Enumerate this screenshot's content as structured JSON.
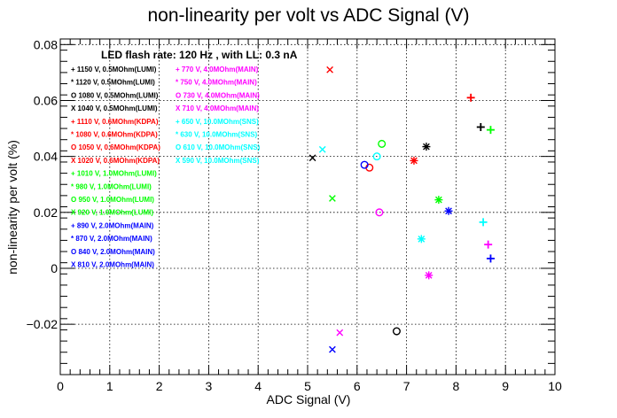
{
  "chart_data": {
    "type": "scatter",
    "title": "non-linearity per volt vs ADC Signal (V)",
    "xlabel": "ADC Signal (V)",
    "ylabel": "non-linearity per volt (%)",
    "xlim": [
      0,
      10
    ],
    "ylim": [
      -0.038,
      0.082
    ],
    "x_ticks": [
      0,
      1,
      2,
      3,
      4,
      5,
      6,
      7,
      8,
      9,
      10
    ],
    "y_ticks": [
      -0.02,
      0,
      0.02,
      0.04,
      0.06,
      0.08
    ],
    "x_tick_labels": [
      "0",
      "1",
      "2",
      "3",
      "4",
      "5",
      "6",
      "7",
      "8",
      "9",
      "10"
    ],
    "y_tick_labels": [
      "−0.02",
      "0",
      "0.02",
      "0.04",
      "0.06",
      "0.08"
    ],
    "grid": true,
    "legend_title": "LED flash rate: 120 Hz , with LL: 0.3 nA",
    "legend_position": "top-left",
    "series": [
      {
        "name": "+ 1150 V, 0.5MOhm(LUMI)",
        "marker": "+",
        "color": "#000000",
        "x": 8.5,
        "y": 0.0505
      },
      {
        "name": "* 1120 V, 0.5MOhm(LUMI)",
        "marker": "*",
        "color": "#000000",
        "x": 7.4,
        "y": 0.0435
      },
      {
        "name": "O 1080 V, 0.5MOhm(LUMI)",
        "marker": "o",
        "color": "#000000",
        "x": 6.8,
        "y": -0.0225
      },
      {
        "name": "X 1040 V, 0.5MOhm(LUMI)",
        "marker": "x",
        "color": "#000000",
        "x": 5.1,
        "y": 0.0395
      },
      {
        "name": "+ 1110 V, 0.6MOhm(KDPA)",
        "marker": "+",
        "color": "#ff0000",
        "x": 8.3,
        "y": 0.061
      },
      {
        "name": "* 1080 V, 0.6MOhm(KDPA)",
        "marker": "*",
        "color": "#ff0000",
        "x": 7.15,
        "y": 0.0385
      },
      {
        "name": "O 1050 V, 0.6MOhm(KDPA)",
        "marker": "o",
        "color": "#ff0000",
        "x": 6.25,
        "y": 0.036
      },
      {
        "name": "X 1020 V, 0.6MOhm(KDPA)",
        "marker": "x",
        "color": "#ff0000",
        "x": 5.45,
        "y": 0.071
      },
      {
        "name": "+ 1010 V, 1.0MOhm(LUMI)",
        "marker": "+",
        "color": "#00ff00",
        "x": 8.7,
        "y": 0.0495
      },
      {
        "name": "* 980 V, 1.0MOhm(LUMI)",
        "marker": "*",
        "color": "#00ff00",
        "x": 7.65,
        "y": 0.0245
      },
      {
        "name": "O 950 V, 1.0MOhm(LUMI)",
        "marker": "o",
        "color": "#00ff00",
        "x": 6.5,
        "y": 0.0445
      },
      {
        "name": "X 920 V, 1.0MOhm(LUMI)",
        "marker": "x",
        "color": "#00ff00",
        "x": 5.5,
        "y": 0.025
      },
      {
        "name": "+ 890 V, 2.0MOhm(MAIN)",
        "marker": "+",
        "color": "#0000ff",
        "x": 8.7,
        "y": 0.0035
      },
      {
        "name": "* 870 V, 2.0MOhm(MAIN)",
        "marker": "*",
        "color": "#0000ff",
        "x": 7.85,
        "y": 0.0205
      },
      {
        "name": "O 840 V, 2.0MOhm(MAIN)",
        "marker": "o",
        "color": "#0000ff",
        "x": 6.15,
        "y": 0.037
      },
      {
        "name": "X 810 V, 2.0MOhm(MAIN)",
        "marker": "x",
        "color": "#0000ff",
        "x": 5.5,
        "y": -0.029
      },
      {
        "name": "+ 770 V, 4.0MOhm(MAIN)",
        "marker": "+",
        "color": "#ff00ff",
        "x": 8.65,
        "y": 0.0085
      },
      {
        "name": "* 750 V, 4.0MOhm(MAIN)",
        "marker": "*",
        "color": "#ff00ff",
        "x": 7.45,
        "y": -0.0025
      },
      {
        "name": "O 730 V, 4.0MOhm(MAIN)",
        "marker": "o",
        "color": "#ff00ff",
        "x": 6.45,
        "y": 0.02
      },
      {
        "name": "X 710 V, 4.0MOhm(MAIN)",
        "marker": "x",
        "color": "#ff00ff",
        "x": 5.65,
        "y": -0.023
      },
      {
        "name": "+ 650 V, 10.0MOhm(SNS)",
        "marker": "+",
        "color": "#00ffff",
        "x": 8.55,
        "y": 0.0165
      },
      {
        "name": "* 630 V, 10.0MOhm(SNS)",
        "marker": "*",
        "color": "#00ffff",
        "x": 7.3,
        "y": 0.0105
      },
      {
        "name": "O 610 V, 10.0MOhm(SNS)",
        "marker": "o",
        "color": "#00ffff",
        "x": 6.4,
        "y": 0.04
      },
      {
        "name": "X 590 V, 10.0MOhm(SNS)",
        "marker": "x",
        "color": "#00ffff",
        "x": 5.3,
        "y": 0.0425
      }
    ]
  }
}
